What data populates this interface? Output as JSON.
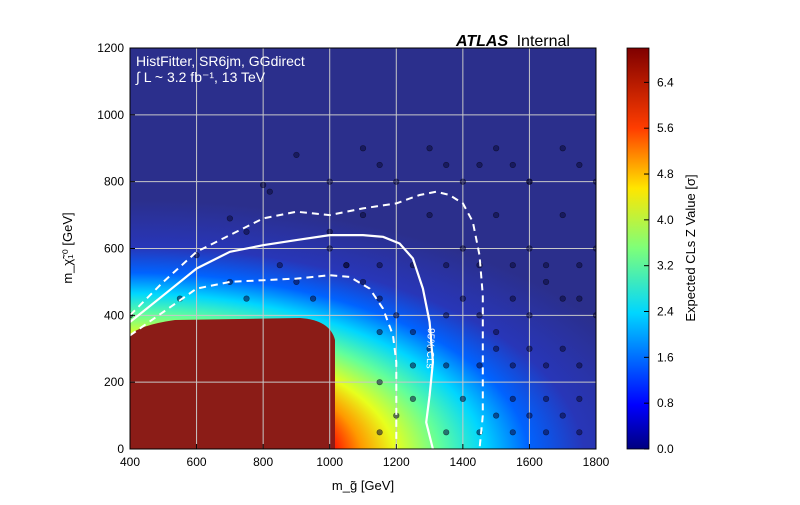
{
  "chart_data": {
    "type": "heatmap",
    "experiment": "ATLAS",
    "experiment_status": "Internal",
    "annotation_line1": "HistFitter, SR6jm, GGdirect",
    "annotation_line2": "∫ L ~ 3.2 fb⁻¹, 13 TeV",
    "xlabel": "m_g̃ [GeV]",
    "ylabel": "m_χ̃₁⁰ [GeV]",
    "xlim": [
      400,
      1800
    ],
    "ylim": [
      0,
      1200
    ],
    "x_ticks": [
      "400",
      "600",
      "800",
      "1000",
      "1200",
      "1400",
      "1600",
      "1800"
    ],
    "y_ticks": [
      "0",
      "200",
      "400",
      "600",
      "800",
      "1000",
      "1200"
    ],
    "grid": true,
    "colorbar": {
      "label": "Expected CLs Z Value [σ]",
      "range": [
        0,
        7
      ],
      "ticks": [
        "0.0",
        "0.8",
        "1.6",
        "2.4",
        "3.2",
        "4.0",
        "4.8",
        "5.6",
        "6.4"
      ],
      "colormap": "jet"
    },
    "contour_label": "95% CLs",
    "contours": [
      {
        "style": "solid",
        "level": "95% CLs",
        "points": [
          [
            400,
            380
          ],
          [
            500,
            460
          ],
          [
            600,
            540
          ],
          [
            700,
            590
          ],
          [
            800,
            610
          ],
          [
            900,
            625
          ],
          [
            1000,
            640
          ],
          [
            1100,
            640
          ],
          [
            1160,
            635
          ],
          [
            1210,
            615
          ],
          [
            1250,
            570
          ],
          [
            1280,
            480
          ],
          [
            1300,
            380
          ],
          [
            1310,
            260
          ],
          [
            1300,
            160
          ],
          [
            1290,
            80
          ],
          [
            1310,
            0
          ]
        ]
      },
      {
        "style": "dashed",
        "level": "+1σ",
        "points": [
          [
            400,
            340
          ],
          [
            500,
            410
          ],
          [
            600,
            480
          ],
          [
            700,
            500
          ],
          [
            800,
            505
          ],
          [
            900,
            510
          ],
          [
            1000,
            520
          ],
          [
            1060,
            515
          ],
          [
            1120,
            480
          ],
          [
            1160,
            420
          ],
          [
            1190,
            340
          ],
          [
            1200,
            260
          ],
          [
            1200,
            170
          ],
          [
            1200,
            80
          ],
          [
            1200,
            0
          ]
        ]
      },
      {
        "style": "dashed",
        "level": "-1σ",
        "points": [
          [
            400,
            400
          ],
          [
            500,
            500
          ],
          [
            600,
            590
          ],
          [
            700,
            640
          ],
          [
            800,
            690
          ],
          [
            900,
            710
          ],
          [
            1000,
            700
          ],
          [
            1100,
            720
          ],
          [
            1200,
            735
          ],
          [
            1270,
            760
          ],
          [
            1320,
            770
          ],
          [
            1360,
            760
          ],
          [
            1400,
            735
          ],
          [
            1430,
            680
          ],
          [
            1450,
            580
          ],
          [
            1460,
            460
          ],
          [
            1460,
            330
          ],
          [
            1460,
            200
          ],
          [
            1460,
            100
          ],
          [
            1450,
            0
          ]
        ]
      }
    ],
    "signal_points": [
      [
        400,
        400
      ],
      [
        550,
        450
      ],
      [
        600,
        580
      ],
      [
        700,
        500
      ],
      [
        700,
        690
      ],
      [
        750,
        450
      ],
      [
        750,
        650
      ],
      [
        800,
        790
      ],
      [
        820,
        770
      ],
      [
        850,
        550
      ],
      [
        900,
        500
      ],
      [
        900,
        880
      ],
      [
        950,
        450
      ],
      [
        1000,
        650
      ],
      [
        1050,
        550
      ],
      [
        1100,
        500
      ],
      [
        1100,
        900
      ],
      [
        1150,
        450
      ],
      [
        1150,
        850
      ],
      [
        1200,
        400
      ],
      [
        1250,
        350
      ],
      [
        1300,
        900
      ],
      [
        1350,
        850
      ],
      [
        1450,
        850
      ],
      [
        1500,
        900
      ],
      [
        1550,
        850
      ],
      [
        1600,
        800
      ],
      [
        1700,
        900
      ],
      [
        1750,
        850
      ],
      [
        1150,
        350
      ],
      [
        1150,
        200
      ],
      [
        1150,
        50
      ],
      [
        1200,
        100
      ],
      [
        1250,
        250
      ],
      [
        1300,
        300
      ],
      [
        1350,
        400
      ],
      [
        1400,
        450
      ],
      [
        1450,
        400
      ],
      [
        1500,
        350
      ],
      [
        1550,
        450
      ],
      [
        1600,
        400
      ],
      [
        1650,
        500
      ],
      [
        1700,
        450
      ],
      [
        1750,
        450
      ],
      [
        1800,
        400
      ],
      [
        1000,
        800
      ],
      [
        1200,
        800
      ],
      [
        1400,
        800
      ],
      [
        1600,
        800
      ],
      [
        1800,
        800
      ],
      [
        1000,
        600
      ],
      [
        1400,
        600
      ],
      [
        1600,
        600
      ],
      [
        1800,
        600
      ],
      [
        1100,
        700
      ],
      [
        1300,
        700
      ],
      [
        1500,
        700
      ],
      [
        1700,
        700
      ],
      [
        1050,
        550
      ],
      [
        1150,
        550
      ],
      [
        1250,
        550
      ],
      [
        1350,
        550
      ],
      [
        1450,
        550
      ],
      [
        1550,
        550
      ],
      [
        1650,
        550
      ],
      [
        1750,
        550
      ],
      [
        1250,
        150
      ],
      [
        1350,
        250
      ],
      [
        1450,
        250
      ],
      [
        1550,
        250
      ],
      [
        1650,
        250
      ],
      [
        1750,
        250
      ],
      [
        1350,
        50
      ],
      [
        1450,
        50
      ],
      [
        1550,
        50
      ],
      [
        1650,
        50
      ],
      [
        1750,
        50
      ],
      [
        1550,
        150
      ],
      [
        1650,
        150
      ],
      [
        1750,
        150
      ],
      [
        1500,
        100
      ],
      [
        1600,
        100
      ],
      [
        1700,
        100
      ],
      [
        1400,
        150
      ],
      [
        1500,
        300
      ],
      [
        1600,
        300
      ],
      [
        1700,
        300
      ]
    ],
    "bg_color": "#2b2f8c"
  }
}
